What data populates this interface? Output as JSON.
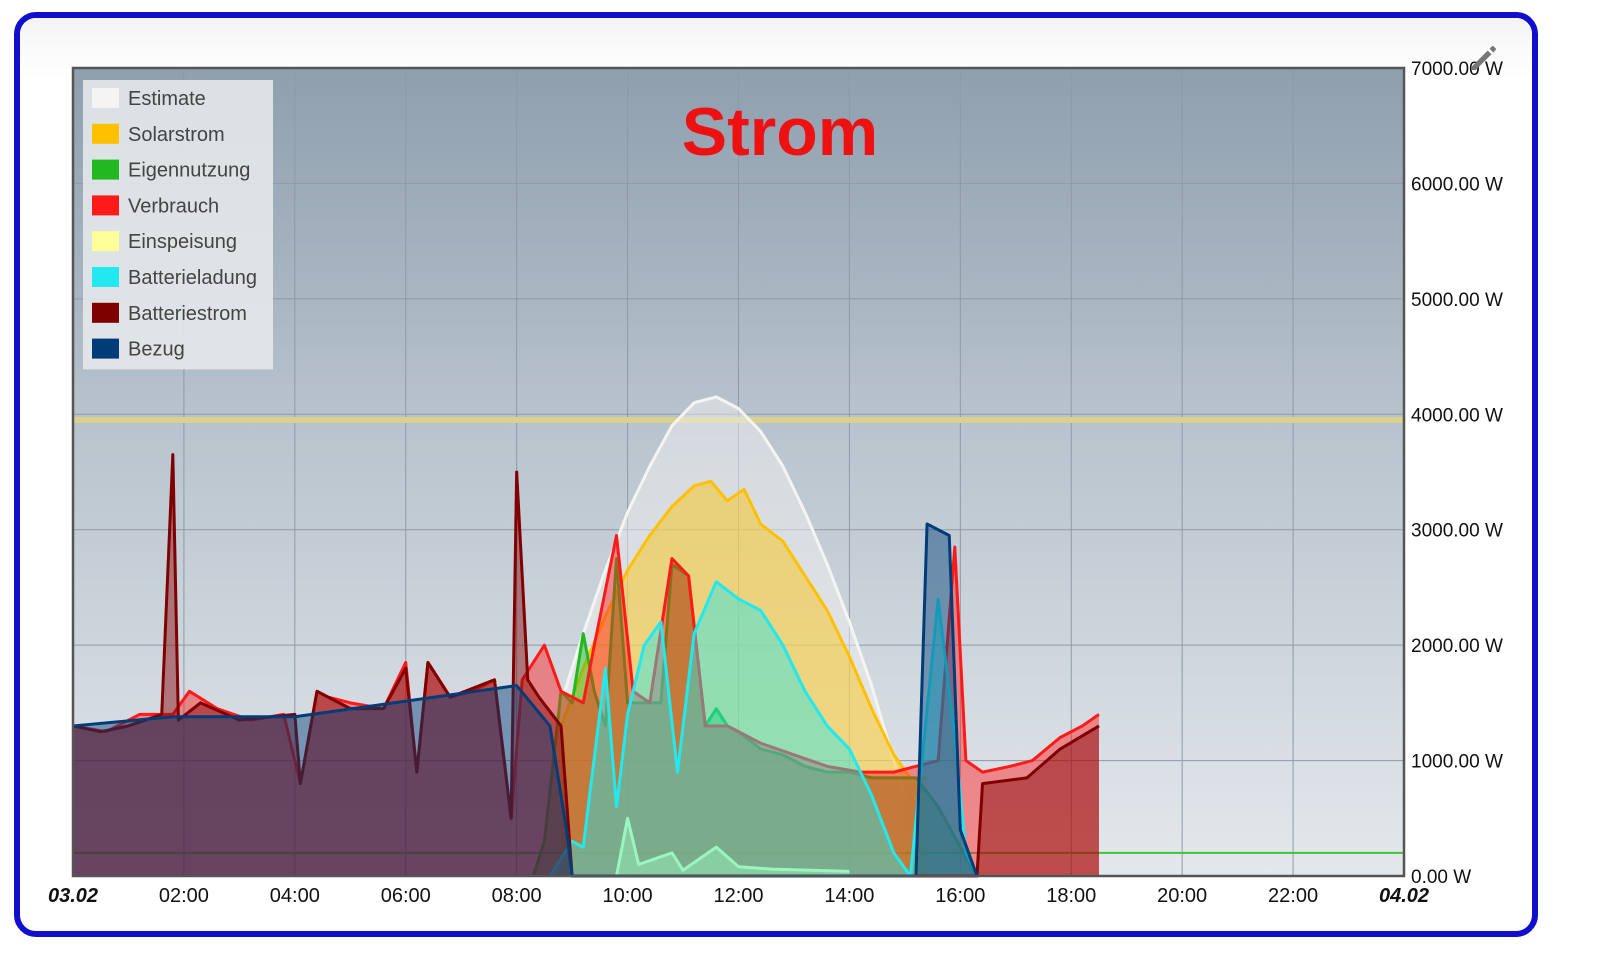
{
  "chart_data": {
    "type": "area",
    "title": "Strom",
    "x_start_label": "03.02",
    "x_end_label": "04.02",
    "x_ticks": [
      "02:00",
      "04:00",
      "06:00",
      "08:00",
      "10:00",
      "12:00",
      "14:00",
      "16:00",
      "18:00",
      "20:00",
      "22:00"
    ],
    "y_ticks": [
      "0.00 W",
      "1000.00 W",
      "2000.00 W",
      "3000.00 W",
      "4000.00 W",
      "5000.00 W",
      "6000.00 W",
      "7000.00 W"
    ],
    "xlim_hours": [
      0,
      24
    ],
    "ylim": [
      0,
      7000
    ],
    "y_unit": "W",
    "legend_position": "top-left",
    "grid": true,
    "threshold_lines": [
      {
        "color": "#d8d28c",
        "value": 3950
      },
      {
        "color": "#3cc43c",
        "value": 200
      }
    ],
    "series": [
      {
        "name": "Estimate",
        "color": "#f4f4f2",
        "points": [
          [
            8.8,
            1500
          ],
          [
            9.2,
            2100
          ],
          [
            9.6,
            2650
          ],
          [
            10,
            3150
          ],
          [
            10.4,
            3550
          ],
          [
            10.8,
            3900
          ],
          [
            11.2,
            4100
          ],
          [
            11.6,
            4150
          ],
          [
            12,
            4050
          ],
          [
            12.4,
            3850
          ],
          [
            12.8,
            3550
          ],
          [
            13.2,
            3150
          ],
          [
            13.6,
            2700
          ],
          [
            14,
            2200
          ],
          [
            14.4,
            1650
          ],
          [
            14.8,
            1000
          ],
          [
            15.0,
            700
          ]
        ]
      },
      {
        "name": "Solarstrom",
        "color": "#ffc000",
        "points": [
          [
            8.8,
            1300
          ],
          [
            9.2,
            1800
          ],
          [
            9.6,
            2250
          ],
          [
            10,
            2650
          ],
          [
            10.4,
            2950
          ],
          [
            10.8,
            3200
          ],
          [
            11.2,
            3380
          ],
          [
            11.5,
            3420
          ],
          [
            11.8,
            3250
          ],
          [
            12.1,
            3350
          ],
          [
            12.4,
            3050
          ],
          [
            12.8,
            2900
          ],
          [
            13.2,
            2600
          ],
          [
            13.6,
            2300
          ],
          [
            14,
            1900
          ],
          [
            14.4,
            1450
          ],
          [
            14.8,
            1050
          ],
          [
            15.1,
            850
          ],
          [
            15.4,
            850
          ]
        ]
      },
      {
        "name": "Eigennutzung",
        "color": "#22b822",
        "points": [
          [
            8.3,
            0
          ],
          [
            8.5,
            300
          ],
          [
            8.8,
            1600
          ],
          [
            9.0,
            1500
          ],
          [
            9.2,
            2100
          ],
          [
            9.4,
            1600
          ],
          [
            9.6,
            1300
          ],
          [
            9.8,
            2750
          ],
          [
            10.0,
            1500
          ],
          [
            10.3,
            1500
          ],
          [
            10.6,
            1500
          ],
          [
            10.8,
            2700
          ],
          [
            11.1,
            2600
          ],
          [
            11.4,
            1300
          ],
          [
            11.6,
            1450
          ],
          [
            11.8,
            1300
          ],
          [
            12.0,
            1250
          ],
          [
            12.4,
            1100
          ],
          [
            12.8,
            1050
          ],
          [
            13.2,
            950
          ],
          [
            13.6,
            900
          ],
          [
            14.0,
            900
          ],
          [
            14.4,
            850
          ],
          [
            14.8,
            850
          ],
          [
            15.2,
            850
          ],
          [
            15.6,
            600
          ],
          [
            16.0,
            250
          ],
          [
            16.3,
            0
          ]
        ]
      },
      {
        "name": "Verbrauch",
        "color": "#ff1a1a",
        "points": [
          [
            0,
            1300
          ],
          [
            0.6,
            1250
          ],
          [
            1.2,
            1400
          ],
          [
            1.8,
            1400
          ],
          [
            2.1,
            1600
          ],
          [
            2.6,
            1450
          ],
          [
            3.2,
            1350
          ],
          [
            3.8,
            1400
          ],
          [
            4.1,
            800
          ],
          [
            4.4,
            1600
          ],
          [
            4.6,
            1550
          ],
          [
            5,
            1500
          ],
          [
            5.6,
            1450
          ],
          [
            6.0,
            1850
          ],
          [
            6.2,
            900
          ],
          [
            6.4,
            1850
          ],
          [
            6.8,
            1550
          ],
          [
            7.2,
            1600
          ],
          [
            7.6,
            1700
          ],
          [
            7.9,
            500
          ],
          [
            8.1,
            1700
          ],
          [
            8.5,
            2000
          ],
          [
            8.8,
            1600
          ],
          [
            9.2,
            1500
          ],
          [
            9.4,
            2000
          ],
          [
            9.8,
            2950
          ],
          [
            10.1,
            1600
          ],
          [
            10.4,
            1500
          ],
          [
            10.8,
            2750
          ],
          [
            11.1,
            2600
          ],
          [
            11.4,
            1300
          ],
          [
            11.8,
            1300
          ],
          [
            12.4,
            1150
          ],
          [
            13,
            1050
          ],
          [
            13.6,
            950
          ],
          [
            14.2,
            900
          ],
          [
            14.8,
            900
          ],
          [
            15.2,
            950
          ],
          [
            15.6,
            1000
          ],
          [
            15.9,
            2850
          ],
          [
            16.1,
            1000
          ],
          [
            16.4,
            900
          ],
          [
            16.9,
            950
          ],
          [
            17.3,
            1000
          ],
          [
            17.8,
            1200
          ],
          [
            18.2,
            1300
          ],
          [
            18.5,
            1400
          ]
        ]
      },
      {
        "name": "Einspeisung",
        "color": "#ffff99",
        "points": [
          [
            9.8,
            0
          ],
          [
            10.0,
            500
          ],
          [
            10.2,
            100
          ],
          [
            10.8,
            200
          ],
          [
            11.0,
            50
          ],
          [
            11.6,
            250
          ],
          [
            12.0,
            80
          ],
          [
            12.6,
            60
          ],
          [
            14.0,
            40
          ]
        ]
      },
      {
        "name": "Batterieladung",
        "color": "#22e8f0",
        "points": [
          [
            8.6,
            0
          ],
          [
            9.0,
            300
          ],
          [
            9.2,
            250
          ],
          [
            9.6,
            1800
          ],
          [
            9.8,
            600
          ],
          [
            10.0,
            1400
          ],
          [
            10.3,
            2000
          ],
          [
            10.6,
            2200
          ],
          [
            10.9,
            900
          ],
          [
            11.2,
            2100
          ],
          [
            11.6,
            2550
          ],
          [
            12.0,
            2400
          ],
          [
            12.4,
            2300
          ],
          [
            12.8,
            2000
          ],
          [
            13.2,
            1600
          ],
          [
            13.6,
            1300
          ],
          [
            14.0,
            1100
          ],
          [
            14.4,
            700
          ],
          [
            14.8,
            200
          ],
          [
            15.1,
            0
          ],
          [
            15.6,
            2400
          ],
          [
            15.9,
            1200
          ],
          [
            16.1,
            200
          ],
          [
            16.3,
            0
          ]
        ]
      },
      {
        "name": "Batteriestrom",
        "color": "#800000",
        "points": [
          [
            0,
            1300
          ],
          [
            0.5,
            1250
          ],
          [
            1.0,
            1300
          ],
          [
            1.6,
            1400
          ],
          [
            1.8,
            3650
          ],
          [
            1.9,
            1350
          ],
          [
            2.3,
            1500
          ],
          [
            3,
            1350
          ],
          [
            4,
            1400
          ],
          [
            4.1,
            800
          ],
          [
            4.4,
            1600
          ],
          [
            5,
            1450
          ],
          [
            5.6,
            1450
          ],
          [
            6.0,
            1800
          ],
          [
            6.2,
            900
          ],
          [
            6.4,
            1850
          ],
          [
            6.8,
            1550
          ],
          [
            7.6,
            1700
          ],
          [
            7.9,
            500
          ],
          [
            8.0,
            3500
          ],
          [
            8.2,
            1700
          ],
          [
            8.4,
            1550
          ],
          [
            8.8,
            1300
          ],
          [
            9,
            0
          ],
          [
            16.3,
            0
          ],
          [
            16.4,
            800
          ],
          [
            17.2,
            850
          ],
          [
            17.8,
            1100
          ],
          [
            18.5,
            1300
          ]
        ]
      },
      {
        "name": "Bezug",
        "color": "#003c78",
        "points": [
          [
            0,
            1300
          ],
          [
            1.8,
            1380
          ],
          [
            4,
            1380
          ],
          [
            8.0,
            1650
          ],
          [
            8.6,
            1300
          ],
          [
            8.9,
            400
          ],
          [
            9.0,
            0
          ],
          [
            15.2,
            0
          ],
          [
            15.4,
            3050
          ],
          [
            15.8,
            2950
          ],
          [
            16.0,
            400
          ],
          [
            16.3,
            0
          ]
        ]
      }
    ]
  }
}
